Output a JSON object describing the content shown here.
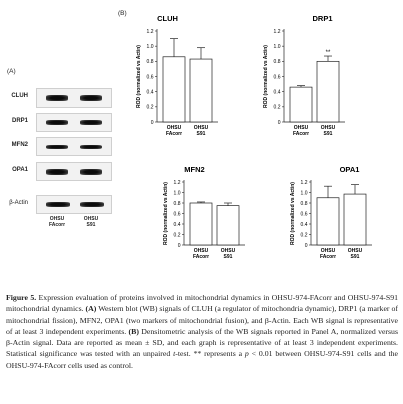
{
  "panel_a": {
    "label": "(A)",
    "blots": [
      {
        "label": "CLUH"
      },
      {
        "label": "DRP1"
      },
      {
        "label": "MFN2"
      },
      {
        "label": "OPA1"
      },
      {
        "label": "β-Actin"
      }
    ],
    "lane_labels": [
      "OHSU\nFAcorr",
      "OHSU\nS91"
    ]
  },
  "panel_b": {
    "label": "(B)"
  },
  "chart_data": [
    {
      "type": "bar",
      "title": "CLUH",
      "ylabel": "ROD (normalized vs Actin)",
      "categories": [
        "OHSU FAcorr",
        "OHSU S91"
      ],
      "values": [
        0.86,
        0.83
      ],
      "errors": [
        0.24,
        0.15
      ],
      "ylim": [
        0,
        1.2
      ],
      "yticks": [
        "0",
        "0.2",
        "0.4",
        "0.6",
        "0.8",
        "1.0",
        "1.2"
      ],
      "annotations": []
    },
    {
      "type": "bar",
      "title": "DRP1",
      "ylabel": "ROD (normalized vs Actin)",
      "categories": [
        "OHSU FAcorr",
        "OHSU S91"
      ],
      "values": [
        0.46,
        0.8
      ],
      "errors": [
        0.02,
        0.07
      ],
      "ylim": [
        0,
        1.2
      ],
      "yticks": [
        "0",
        "0.2",
        "0.4",
        "0.6",
        "0.8",
        "1.0",
        "1.2"
      ],
      "annotations": [
        "",
        "**"
      ]
    },
    {
      "type": "bar",
      "title": "MFN2",
      "ylabel": "ROD (normalized vs Actin)",
      "categories": [
        "OHSU FAcorr",
        "OHSU S91"
      ],
      "values": [
        0.8,
        0.75
      ],
      "errors": [
        0.02,
        0.05
      ],
      "ylim": [
        0,
        1.2
      ],
      "yticks": [
        "0",
        "0.2",
        "0.4",
        "0.6",
        "0.8",
        "1.0",
        "1.2"
      ],
      "annotations": []
    },
    {
      "type": "bar",
      "title": "OPA1",
      "ylabel": "ROD (normalized vs Actin)",
      "categories": [
        "OHSU FAcorr",
        "OHSU S91"
      ],
      "values": [
        0.9,
        0.97
      ],
      "errors": [
        0.22,
        0.18
      ],
      "ylim": [
        0,
        1.2
      ],
      "yticks": [
        "0",
        "0.2",
        "0.4",
        "0.6",
        "0.8",
        "1.0",
        "1.2"
      ],
      "annotations": []
    }
  ],
  "caption": {
    "fig": "Figure 5.",
    "text1": " Expression evaluation of proteins involved in mitochondrial dynamics in OHSU-974-FAcorr and OHSU-974-S91 mitochondrial dynamics. ",
    "a_ref": "(A)",
    "text2": " Western blot (WB) signals of CLUH (a regulator of mitochondria dynamic), DRP1 (a marker of mitochondrial fission), MFN2, OPA1 (two markers of mitochondrial fusion), and β-Actin. Each WB signal is representative of at least 3 independent experiments. ",
    "b_ref": "(B)",
    "text3": " Densitometric analysis of the WB signals reported in Panel A, normalized versus β-Actin signal. Data are reported as mean ± SD, and each graph is representative of at least 3 independent experiments. Statistical significance was tested with an unpaired ",
    "t_italic": "t",
    "text4": "-test. ** represents a ",
    "p_italic": "p",
    "text5": " < 0.01 between OHSU-974-S91 cells and the OHSU-974-FAcorr cells used as control."
  }
}
